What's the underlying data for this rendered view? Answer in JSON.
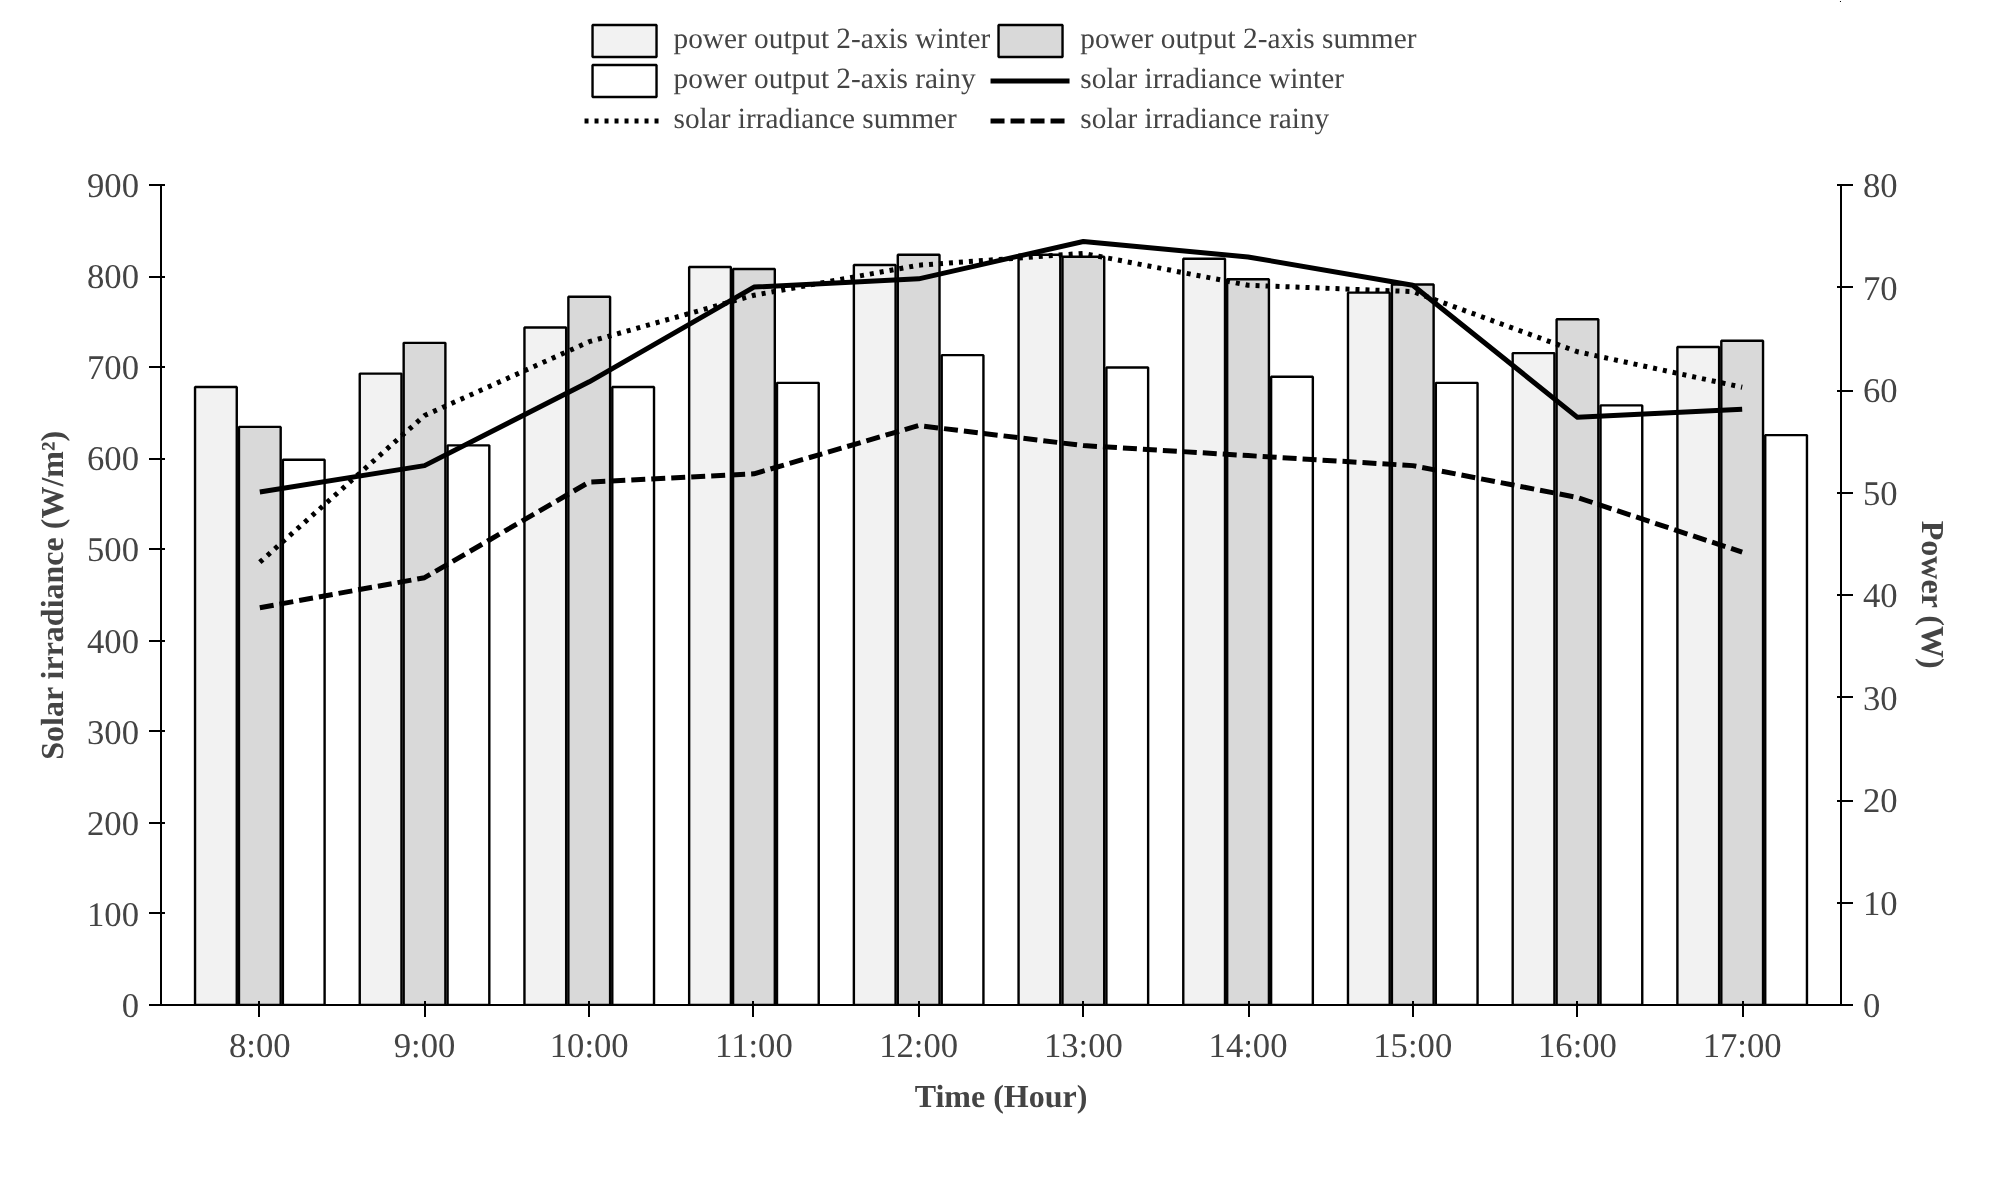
{
  "chart_data": {
    "type": "bar",
    "xlabel": "Time (Hour)",
    "ylabel": "Solar irradiance (W/m²)",
    "y2label": "Power (W)",
    "categories": [
      "8:00",
      "9:00",
      "10:00",
      "11:00",
      "12:00",
      "13:00",
      "14:00",
      "15:00",
      "16:00",
      "17:00"
    ],
    "series": [
      {
        "name": "power output 2-axis winter",
        "axis": "y2",
        "color": "#f2f2f2",
        "values": [
          60.3,
          61.6,
          66.1,
          72.0,
          72.2,
          73.2,
          72.8,
          69.5,
          63.6,
          64.2
        ]
      },
      {
        "name": "power output 2-axis summer",
        "axis": "y2",
        "color": "#d9d9d9",
        "values": [
          56.4,
          64.6,
          69.1,
          71.8,
          73.2,
          73.0,
          70.8,
          70.3,
          66.9,
          64.8
        ]
      },
      {
        "name": "power output 2-axis rainy",
        "axis": "y2",
        "color": "#ffffff",
        "values": [
          53.2,
          54.6,
          60.3,
          60.7,
          63.4,
          62.2,
          61.3,
          60.7,
          58.5,
          55.6
        ]
      },
      {
        "name": "solar irradiance winter",
        "type": "line",
        "color": "#000000",
        "line_style": "solid",
        "values": [
          563,
          592,
          684,
          788,
          797,
          838,
          821,
          790,
          645,
          654
        ]
      },
      {
        "name": "solar irradiance summer",
        "type": "line",
        "color": "#000000",
        "line_style": "dotted",
        "values": [
          486,
          647,
          728,
          779,
          812,
          825,
          790,
          783,
          717,
          678
        ]
      },
      {
        "name": "solar irradiance rainy",
        "type": "line",
        "color": "#000000",
        "line_style": "dashed",
        "values": [
          436,
          469,
          574,
          583,
          636,
          614,
          603,
          592,
          557,
          497
        ]
      }
    ],
    "ylim": [
      0,
      900
    ],
    "yticks": [
      0,
      100,
      200,
      300,
      400,
      500,
      600,
      700,
      800,
      900
    ],
    "y2lim": [
      0,
      80
    ],
    "y2ticks": [
      0,
      10,
      20,
      30,
      40,
      50,
      60,
      70,
      80
    ],
    "grid": false,
    "legend": "top"
  }
}
